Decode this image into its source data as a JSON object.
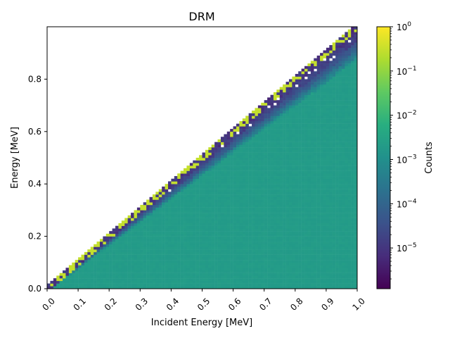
{
  "chart_data": {
    "type": "heatmap",
    "title": "DRM",
    "xlabel": "Incident Energy [MeV]",
    "ylabel": "Energy [MeV]",
    "xlim": [
      0.0,
      1.0
    ],
    "ylim": [
      0.0,
      1.0
    ],
    "x_ticks": [
      "0.0",
      "0.1",
      "0.2",
      "0.3",
      "0.4",
      "0.5",
      "0.6",
      "0.7",
      "0.8",
      "0.9",
      "1.0"
    ],
    "x_tick_values": [
      0.0,
      0.1,
      0.2,
      0.3,
      0.4,
      0.5,
      0.6,
      0.7,
      0.8,
      0.9,
      1.0
    ],
    "y_ticks": [
      "0.0",
      "0.2",
      "0.4",
      "0.6",
      "0.8"
    ],
    "y_tick_values": [
      0.0,
      0.2,
      0.4,
      0.6,
      0.8
    ],
    "colorbar": {
      "label": "Counts",
      "scale": "log",
      "colormap": "viridis",
      "range": [
        1.2e-06,
        1.0
      ],
      "ticks": [
        {
          "base": "10",
          "exp": "0",
          "value": 1.0
        },
        {
          "base": "10",
          "exp": "−1",
          "value": 0.1
        },
        {
          "base": "10",
          "exp": "−2",
          "value": 0.01
        },
        {
          "base": "10",
          "exp": "−3",
          "value": 0.001
        },
        {
          "base": "10",
          "exp": "−4",
          "value": 0.0001
        },
        {
          "base": "10",
          "exp": "−5",
          "value": 1e-05
        }
      ]
    },
    "bins": {
      "x": 100,
      "y": 100
    },
    "continuum_level": 0.002,
    "edge_band_level": 1e-05,
    "photopeak_level": 0.3,
    "description_empty_region": "above diagonal y = x (white)"
  }
}
